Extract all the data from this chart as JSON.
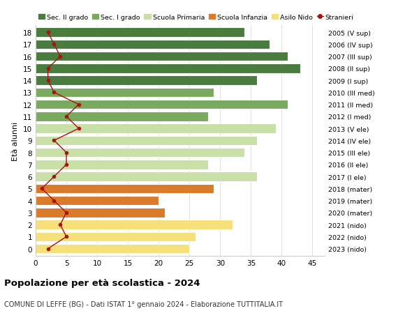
{
  "ages": [
    18,
    17,
    16,
    15,
    14,
    13,
    12,
    11,
    10,
    9,
    8,
    7,
    6,
    5,
    4,
    3,
    2,
    1,
    0
  ],
  "years": [
    "2005 (V sup)",
    "2006 (IV sup)",
    "2007 (III sup)",
    "2008 (II sup)",
    "2009 (I sup)",
    "2010 (III med)",
    "2011 (II med)",
    "2012 (I med)",
    "2013 (V ele)",
    "2014 (IV ele)",
    "2015 (III ele)",
    "2016 (II ele)",
    "2017 (I ele)",
    "2018 (mater)",
    "2019 (mater)",
    "2020 (mater)",
    "2021 (nido)",
    "2022 (nido)",
    "2023 (nido)"
  ],
  "bar_values": [
    34,
    38,
    41,
    43,
    36,
    29,
    41,
    28,
    39,
    36,
    34,
    28,
    36,
    29,
    20,
    21,
    32,
    26,
    25
  ],
  "bar_colors": [
    "#4a7c3f",
    "#4a7c3f",
    "#4a7c3f",
    "#4a7c3f",
    "#4a7c3f",
    "#7aaa5e",
    "#7aaa5e",
    "#7aaa5e",
    "#c8dfa8",
    "#c8dfa8",
    "#c8dfa8",
    "#c8dfa8",
    "#c8dfa8",
    "#d97b2b",
    "#d97b2b",
    "#d97b2b",
    "#f5e07a",
    "#f5e07a",
    "#f5e07a"
  ],
  "stranieri_values": [
    2,
    3,
    4,
    2,
    2,
    3,
    7,
    5,
    7,
    3,
    5,
    5,
    3,
    1,
    3,
    5,
    4,
    5,
    2
  ],
  "legend_labels": [
    "Sec. II grado",
    "Sec. I grado",
    "Scuola Primaria",
    "Scuola Infanzia",
    "Asilo Nido",
    "Stranieri"
  ],
  "legend_colors": [
    "#4a7c3f",
    "#7aaa5e",
    "#c8dfa8",
    "#d97b2b",
    "#f5e07a",
    "#aa1111"
  ],
  "ylabel_left": "Età alunni",
  "title": "Popolazione per età scolastica - 2024",
  "subtitle": "COMUNE DI LEFFE (BG) - Dati ISTAT 1° gennaio 2024 - Elaborazione TUTTITALIA.IT",
  "xlim": [
    0,
    47
  ],
  "ylim_min": -0.6,
  "ylim_max": 18.6,
  "background_color": "#ffffff",
  "bar_height": 0.78,
  "grid_color": "#e0e0e0",
  "stranieri_color": "#aa1111"
}
